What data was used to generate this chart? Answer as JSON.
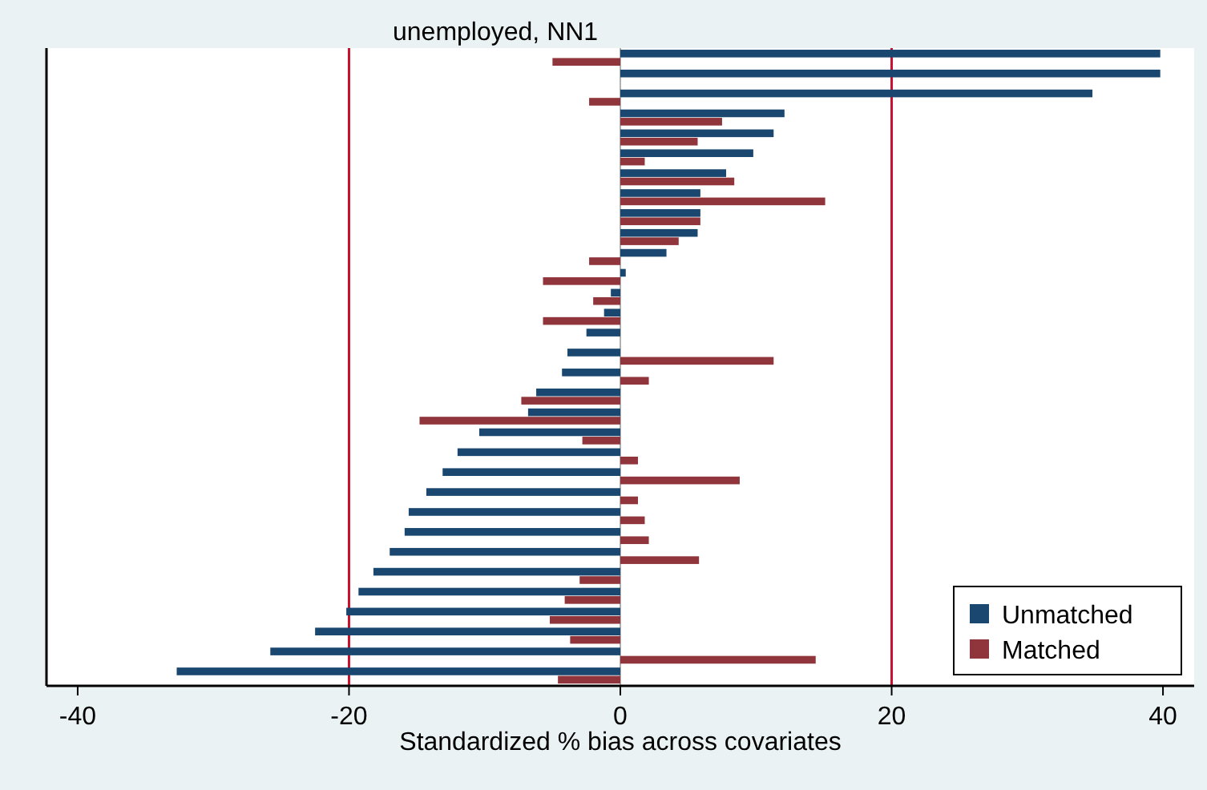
{
  "chart_data": {
    "type": "bar",
    "orientation": "horizontal",
    "title": "unemployed, NN1",
    "xlabel": "Standardized % bias across covariates",
    "categories": [
      null,
      null,
      null,
      null,
      null,
      null,
      null,
      null,
      null,
      null,
      null,
      null,
      null,
      null,
      null,
      null,
      null,
      null,
      null,
      null,
      null,
      null,
      null,
      null,
      null,
      null,
      null,
      null,
      null,
      null,
      null,
      null
    ],
    "series": [
      {
        "name": "Unmatched",
        "color": "#1a476f",
        "values": [
          39.8,
          39.8,
          34.8,
          12.1,
          11.3,
          9.8,
          7.8,
          5.9,
          5.9,
          5.7,
          3.4,
          0.4,
          -0.7,
          -1.2,
          -2.5,
          -3.9,
          -4.3,
          -6.2,
          -6.8,
          -10.4,
          -12.0,
          -13.1,
          -14.3,
          -15.6,
          -15.9,
          -17.0,
          -18.2,
          -19.3,
          -20.2,
          -22.5,
          -25.8,
          -32.7
        ]
      },
      {
        "name": "Matched",
        "color": "#90353b",
        "values": [
          -5.0,
          null,
          -2.3,
          7.5,
          5.7,
          1.8,
          8.4,
          15.1,
          5.9,
          4.3,
          -2.3,
          -5.7,
          -2.0,
          -5.7,
          null,
          11.3,
          2.1,
          -7.3,
          -14.8,
          -2.8,
          1.3,
          8.8,
          1.3,
          1.8,
          2.1,
          5.8,
          -3.0,
          -4.1,
          -5.2,
          -3.7,
          14.4,
          -4.6
        ]
      }
    ],
    "xlim": [
      -42.3,
      42.3
    ],
    "xticks": [
      -40,
      -20,
      0,
      20,
      40
    ],
    "ref_lines": [
      {
        "axis": "x",
        "value": -20,
        "color": "#c8102e"
      },
      {
        "axis": "x",
        "value": 0,
        "color": "#b0b0b0"
      },
      {
        "axis": "x",
        "value": 20,
        "color": "#c8102e"
      }
    ],
    "legend": "bottom right"
  }
}
